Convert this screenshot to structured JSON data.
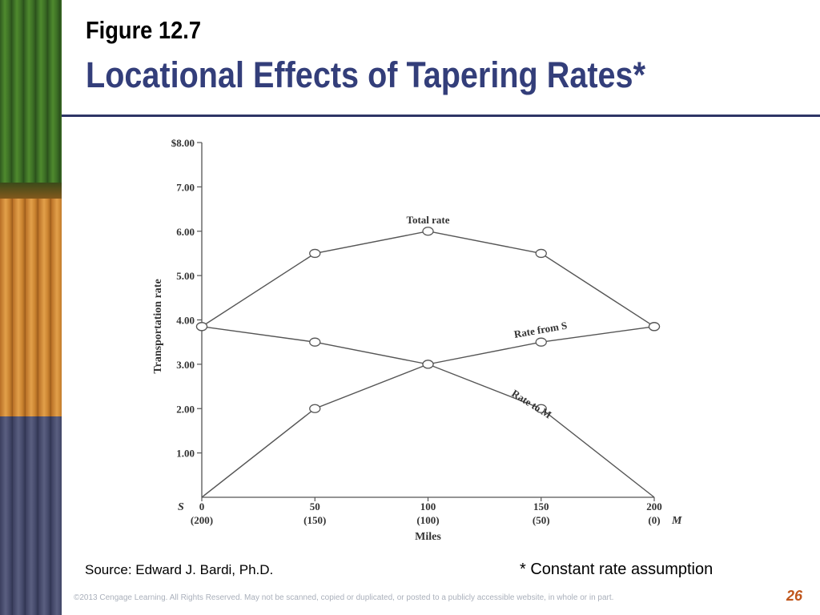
{
  "slide": {
    "figure_label": "Figure 12.7",
    "title": "Locational Effects of Tapering Rates*",
    "source": "Source:  Edward J. Bardi, Ph.D.",
    "note": "* Constant rate assumption",
    "copyright": "©2013 Cengage Learning. All Rights Reserved. May not be scanned, copied or duplicated, or posted to a publicly accessible website, in whole or in part.",
    "page_number": "26",
    "colors": {
      "title": "#333e7a",
      "rule": "#2e3566",
      "page_number": "#c0561c"
    }
  },
  "chart_data": {
    "type": "line",
    "ylabel": "Transportation rate",
    "xlabel": "Miles",
    "x": [
      0,
      50,
      100,
      150,
      200
    ],
    "x_tick_labels": [
      "0",
      "50",
      "100",
      "150",
      "200"
    ],
    "x_tick_sublabels": [
      "(200)",
      "(150)",
      "(100)",
      "(50)",
      "(0)"
    ],
    "x_end_left": "S",
    "x_end_right": "M",
    "ylim": [
      0,
      8
    ],
    "y_ticks": [
      1,
      2,
      3,
      4,
      5,
      6,
      7,
      8
    ],
    "y_tick_labels": [
      "1.00",
      "2.00",
      "3.00",
      "4.00",
      "5.00",
      "6.00",
      "7.00",
      "$8.00"
    ],
    "series": [
      {
        "name": "Total rate",
        "values": [
          3.85,
          5.5,
          6.0,
          5.5,
          3.85
        ]
      },
      {
        "name": "Rate from S",
        "values": [
          0,
          2.0,
          3.0,
          3.5,
          3.85
        ]
      },
      {
        "name": "Rate to M",
        "values": [
          3.85,
          3.5,
          3.0,
          2.0,
          0
        ]
      }
    ],
    "grid": false,
    "legend": "none"
  }
}
